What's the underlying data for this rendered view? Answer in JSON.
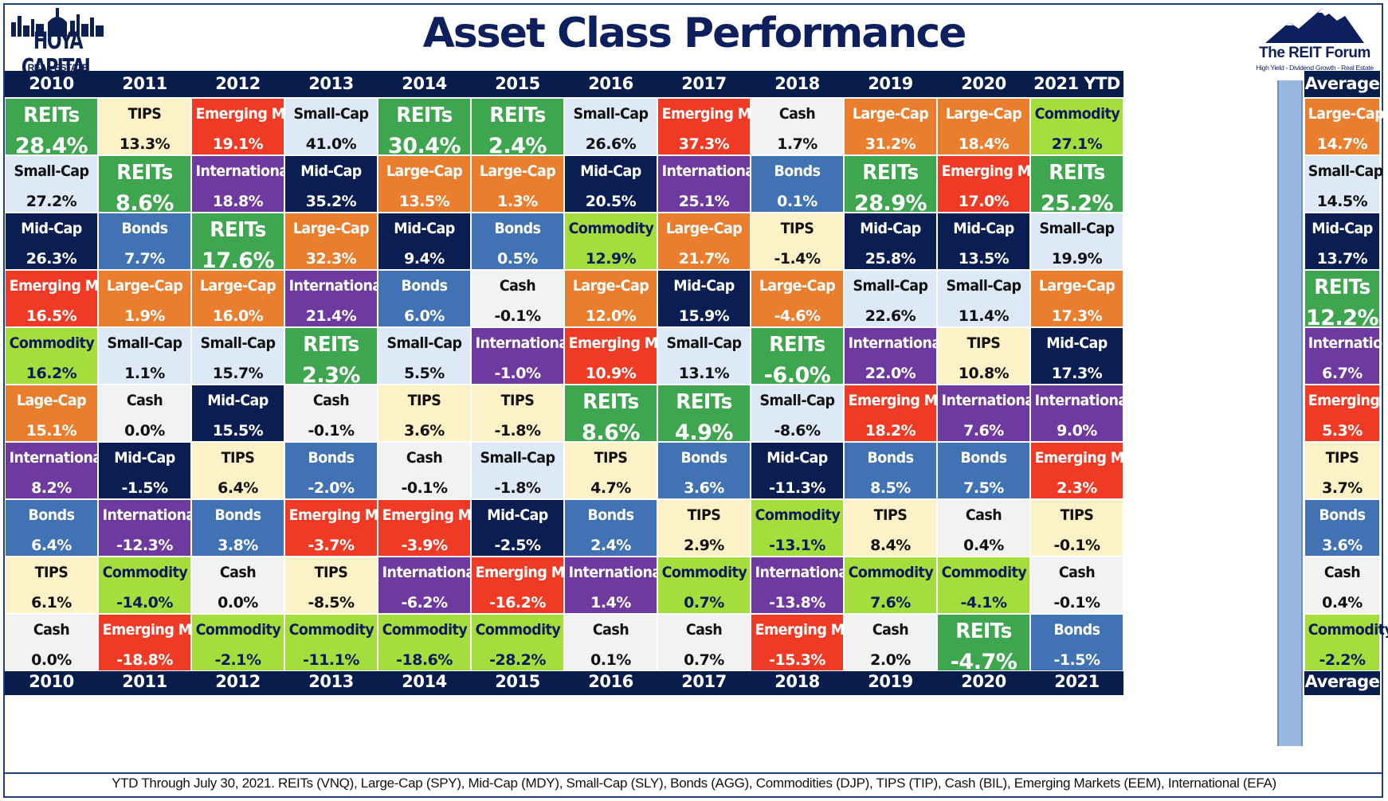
{
  "header": {
    "title": "Asset Class Performance",
    "left_logo": {
      "name": "HOYA CAPITAL",
      "sub": "REAL ESTATE"
    },
    "right_logo": {
      "name": "The REIT Forum",
      "tagline": "High Yield - Dividend Growth - Real Estate"
    }
  },
  "colors": {
    "REITs": "#3ea64e",
    "TIPS": "#fdf1c8",
    "Emerging Mk": "#ef3b25",
    "Small-Cap": "#dde9f6",
    "Large-Cap": "#e97e2e",
    "Mid-Cap": "#0a1e52",
    "International": "#6f3a9f",
    "Bonds": "#4173b4",
    "Cash": "#f2f2f2",
    "Commodity": "#a5de3c",
    "Lage-Cap": "#e97e2e"
  },
  "text_colors": {
    "REITs": "#ffffff",
    "TIPS": "#111111",
    "Emerging Mk": "#ffffff",
    "Small-Cap": "#111111",
    "Large-Cap": "#ffffff",
    "Lage-Cap": "#ffffff",
    "Mid-Cap": "#ffffff",
    "International": "#ffffff",
    "Bonds": "#ffffff",
    "Cash": "#111111",
    "Commodity": "#0b1a5a"
  },
  "chart_data": {
    "type": "table",
    "title": "Asset Class Performance",
    "top_headers": [
      "2010",
      "2011",
      "2012",
      "2013",
      "2014",
      "2015",
      "2016",
      "2017",
      "2018",
      "2019",
      "2020",
      "2021 YTD"
    ],
    "bottom_headers": [
      "2010",
      "2011",
      "2012",
      "2013",
      "2014",
      "2015",
      "2016",
      "2017",
      "2018",
      "2019",
      "2020",
      "2021"
    ],
    "average_header": "Average",
    "columns": [
      [
        [
          "REITs",
          "28.4%"
        ],
        [
          "Small-Cap",
          "27.2%"
        ],
        [
          "Mid-Cap",
          "26.3%"
        ],
        [
          "Emerging Mk",
          "16.5%"
        ],
        [
          "Commodity",
          "16.2%"
        ],
        [
          "Lage-Cap",
          "15.1%"
        ],
        [
          "International",
          "8.2%"
        ],
        [
          "Bonds",
          "6.4%"
        ],
        [
          "TIPS",
          "6.1%"
        ],
        [
          "Cash",
          "0.0%"
        ]
      ],
      [
        [
          "TIPS",
          "13.3%"
        ],
        [
          "REITs",
          "8.6%"
        ],
        [
          "Bonds",
          "7.7%"
        ],
        [
          "Large-Cap",
          "1.9%"
        ],
        [
          "Small-Cap",
          "1.1%"
        ],
        [
          "Cash",
          "0.0%"
        ],
        [
          "Mid-Cap",
          "-1.5%"
        ],
        [
          "International",
          "-12.3%"
        ],
        [
          "Commodity",
          "-14.0%"
        ],
        [
          "Emerging Mk",
          "-18.8%"
        ]
      ],
      [
        [
          "Emerging Mk",
          "19.1%"
        ],
        [
          "International",
          "18.8%"
        ],
        [
          "REITs",
          "17.6%"
        ],
        [
          "Large-Cap",
          "16.0%"
        ],
        [
          "Small-Cap",
          "15.7%"
        ],
        [
          "Mid-Cap",
          "15.5%"
        ],
        [
          "TIPS",
          "6.4%"
        ],
        [
          "Bonds",
          "3.8%"
        ],
        [
          "Cash",
          "0.0%"
        ],
        [
          "Commodity",
          "-2.1%"
        ]
      ],
      [
        [
          "Small-Cap",
          "41.0%"
        ],
        [
          "Mid-Cap",
          "35.2%"
        ],
        [
          "Large-Cap",
          "32.3%"
        ],
        [
          "International",
          "21.4%"
        ],
        [
          "REITs",
          "2.3%"
        ],
        [
          "Cash",
          "-0.1%"
        ],
        [
          "Bonds",
          "-2.0%"
        ],
        [
          "Emerging Mk",
          "-3.7%"
        ],
        [
          "TIPS",
          "-8.5%"
        ],
        [
          "Commodity",
          "-11.1%"
        ]
      ],
      [
        [
          "REITs",
          "30.4%"
        ],
        [
          "Large-Cap",
          "13.5%"
        ],
        [
          "Mid-Cap",
          "9.4%"
        ],
        [
          "Bonds",
          "6.0%"
        ],
        [
          "Small-Cap",
          "5.5%"
        ],
        [
          "TIPS",
          "3.6%"
        ],
        [
          "Cash",
          "-0.1%"
        ],
        [
          "Emerging Mk",
          "-3.9%"
        ],
        [
          "International",
          "-6.2%"
        ],
        [
          "Commodity",
          "-18.6%"
        ]
      ],
      [
        [
          "REITs",
          "2.4%"
        ],
        [
          "Large-Cap",
          "1.3%"
        ],
        [
          "Bonds",
          "0.5%"
        ],
        [
          "Cash",
          "-0.1%"
        ],
        [
          "International",
          "-1.0%"
        ],
        [
          "TIPS",
          "-1.8%"
        ],
        [
          "Small-Cap",
          "-1.8%"
        ],
        [
          "Mid-Cap",
          "-2.5%"
        ],
        [
          "Emerging Mk",
          "-16.2%"
        ],
        [
          "Commodity",
          "-28.2%"
        ]
      ],
      [
        [
          "Small-Cap",
          "26.6%"
        ],
        [
          "Mid-Cap",
          "20.5%"
        ],
        [
          "Commodity",
          "12.9%"
        ],
        [
          "Large-Cap",
          "12.0%"
        ],
        [
          "Emerging Mk",
          "10.9%"
        ],
        [
          "REITs",
          "8.6%"
        ],
        [
          "TIPS",
          "4.7%"
        ],
        [
          "Bonds",
          "2.4%"
        ],
        [
          "International",
          "1.4%"
        ],
        [
          "Cash",
          "0.1%"
        ]
      ],
      [
        [
          "Emerging Mk",
          "37.3%"
        ],
        [
          "International",
          "25.1%"
        ],
        [
          "Large-Cap",
          "21.7%"
        ],
        [
          "Mid-Cap",
          "15.9%"
        ],
        [
          "Small-Cap",
          "13.1%"
        ],
        [
          "REITs",
          "4.9%"
        ],
        [
          "Bonds",
          "3.6%"
        ],
        [
          "TIPS",
          "2.9%"
        ],
        [
          "Commodity",
          "0.7%"
        ],
        [
          "Cash",
          "0.7%"
        ]
      ],
      [
        [
          "Cash",
          "1.7%"
        ],
        [
          "Bonds",
          "0.1%"
        ],
        [
          "TIPS",
          "-1.4%"
        ],
        [
          "Large-Cap",
          "-4.6%"
        ],
        [
          "REITs",
          "-6.0%"
        ],
        [
          "Small-Cap",
          "-8.6%"
        ],
        [
          "Mid-Cap",
          "-11.3%"
        ],
        [
          "Commodity",
          "-13.1%"
        ],
        [
          "International",
          "-13.8%"
        ],
        [
          "Emerging Mk",
          "-15.3%"
        ]
      ],
      [
        [
          "Large-Cap",
          "31.2%"
        ],
        [
          "REITs",
          "28.9%"
        ],
        [
          "Mid-Cap",
          "25.8%"
        ],
        [
          "Small-Cap",
          "22.6%"
        ],
        [
          "International",
          "22.0%"
        ],
        [
          "Emerging Mk",
          "18.2%"
        ],
        [
          "Bonds",
          "8.5%"
        ],
        [
          "TIPS",
          "8.4%"
        ],
        [
          "Commodity",
          "7.6%"
        ],
        [
          "Cash",
          "2.0%"
        ]
      ],
      [
        [
          "Large-Cap",
          "18.4%"
        ],
        [
          "Emerging Mk",
          "17.0%"
        ],
        [
          "Mid-Cap",
          "13.5%"
        ],
        [
          "Small-Cap",
          "11.4%"
        ],
        [
          "TIPS",
          "10.8%"
        ],
        [
          "International",
          "7.6%"
        ],
        [
          "Bonds",
          "7.5%"
        ],
        [
          "Cash",
          "0.4%"
        ],
        [
          "Commodity",
          "-4.1%"
        ],
        [
          "REITs",
          "-4.7%"
        ]
      ],
      [
        [
          "Commodity",
          "27.1%"
        ],
        [
          "REITs",
          "25.2%"
        ],
        [
          "Small-Cap",
          "19.9%"
        ],
        [
          "Large-Cap",
          "17.3%"
        ],
        [
          "Mid-Cap",
          "17.3%"
        ],
        [
          "International",
          "9.0%"
        ],
        [
          "Emerging Mk",
          "2.3%"
        ],
        [
          "TIPS",
          "-0.1%"
        ],
        [
          "Cash",
          "-0.1%"
        ],
        [
          "Bonds",
          "-1.5%"
        ]
      ]
    ],
    "average": [
      [
        "Large-Cap",
        "14.7%"
      ],
      [
        "Small-Cap",
        "14.5%"
      ],
      [
        "Mid-Cap",
        "13.7%"
      ],
      [
        "REITs",
        "12.2%"
      ],
      [
        "International",
        "6.7%"
      ],
      [
        "Emerging Mk",
        "5.3%"
      ],
      [
        "TIPS",
        "3.7%"
      ],
      [
        "Bonds",
        "3.6%"
      ],
      [
        "Cash",
        "0.4%"
      ],
      [
        "Commodity",
        "-2.2%"
      ]
    ]
  },
  "footer": "YTD Through July 30, 2021. REITs (VNQ), Large-Cap (SPY), Mid-Cap (MDY), Small-Cap (SLY), Bonds (AGG), Commodities (DJP), TIPS (TIP), Cash (BIL), Emerging Markets (EEM), International (EFA)"
}
